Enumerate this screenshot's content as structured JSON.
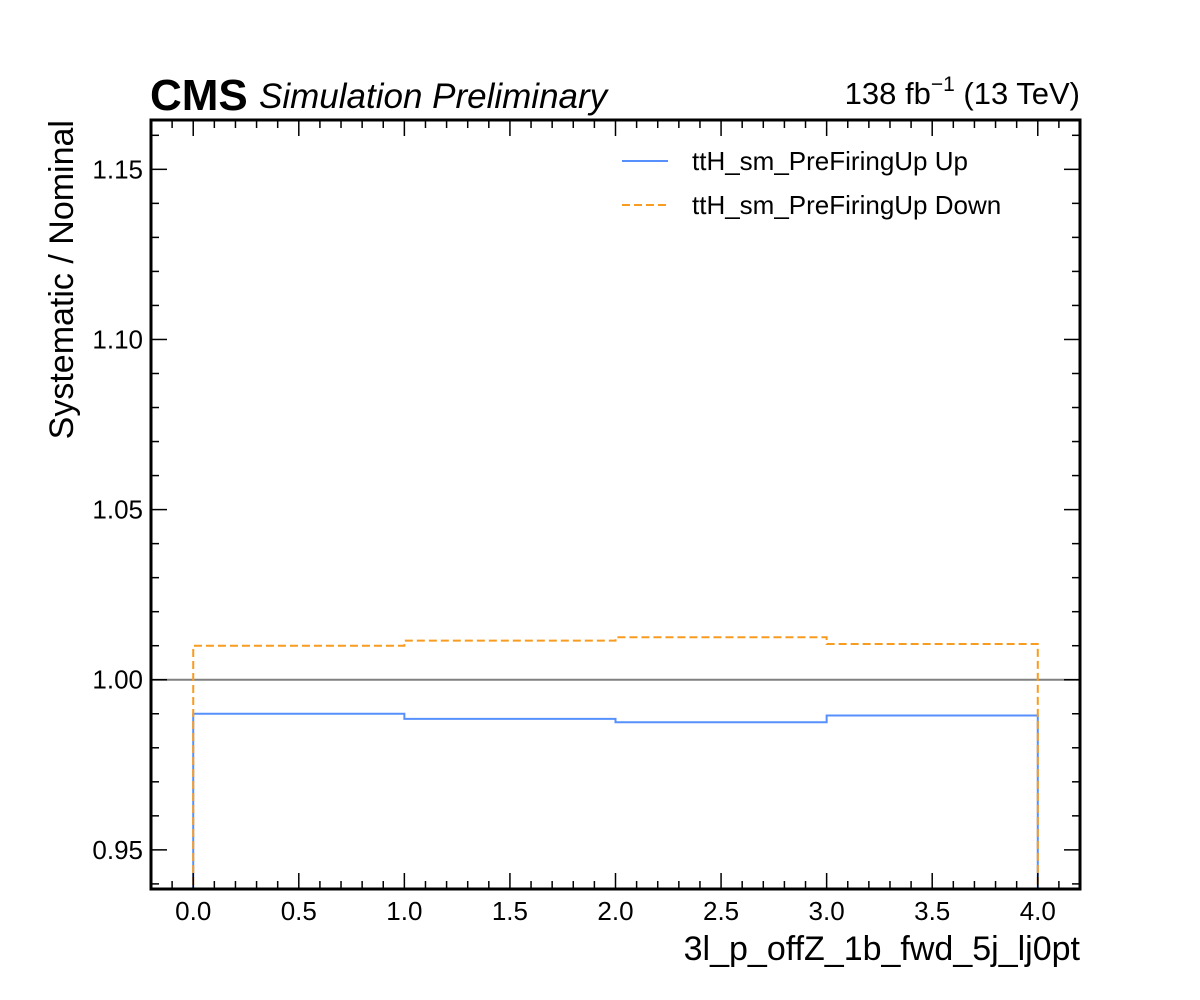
{
  "chart_data": {
    "type": "line",
    "drawstyle": "steps",
    "header": {
      "experiment": "CMS",
      "status": "Simulation Preliminary",
      "lumi_value": "138 fb",
      "lumi_exp": "−1",
      "energy": " (13 TeV)"
    },
    "xlabel": "3l_p_offZ_1b_fwd_5j_lj0pt",
    "ylabel": "Systematic / Nominal",
    "xlim": [
      -0.2,
      4.2
    ],
    "ylim": [
      0.9385,
      1.1645
    ],
    "xticks": [
      0.0,
      0.5,
      1.0,
      1.5,
      2.0,
      2.5,
      3.0,
      3.5,
      4.0
    ],
    "xtick_labels": [
      "0.0",
      "0.5",
      "1.0",
      "1.5",
      "2.0",
      "2.5",
      "3.0",
      "3.5",
      "4.0"
    ],
    "yticks": [
      0.95,
      1.0,
      1.05,
      1.1,
      1.15
    ],
    "ytick_labels": [
      "0.95",
      "1.00",
      "1.05",
      "1.10",
      "1.15"
    ],
    "bin_edges": [
      0,
      1,
      2,
      3,
      4
    ],
    "reference_line": 1.0,
    "legend_position": "top-right",
    "series": [
      {
        "name": "ttH_sm_PreFiringUp Up",
        "values": [
          0.99,
          0.9885,
          0.9875,
          0.9895
        ],
        "color": "#5790fc",
        "style": "solid"
      },
      {
        "name": "ttH_sm_PreFiringUp Down",
        "values": [
          1.01,
          1.0115,
          1.0125,
          1.0105
        ],
        "color": "#f89c20",
        "style": "dashed"
      }
    ]
  }
}
